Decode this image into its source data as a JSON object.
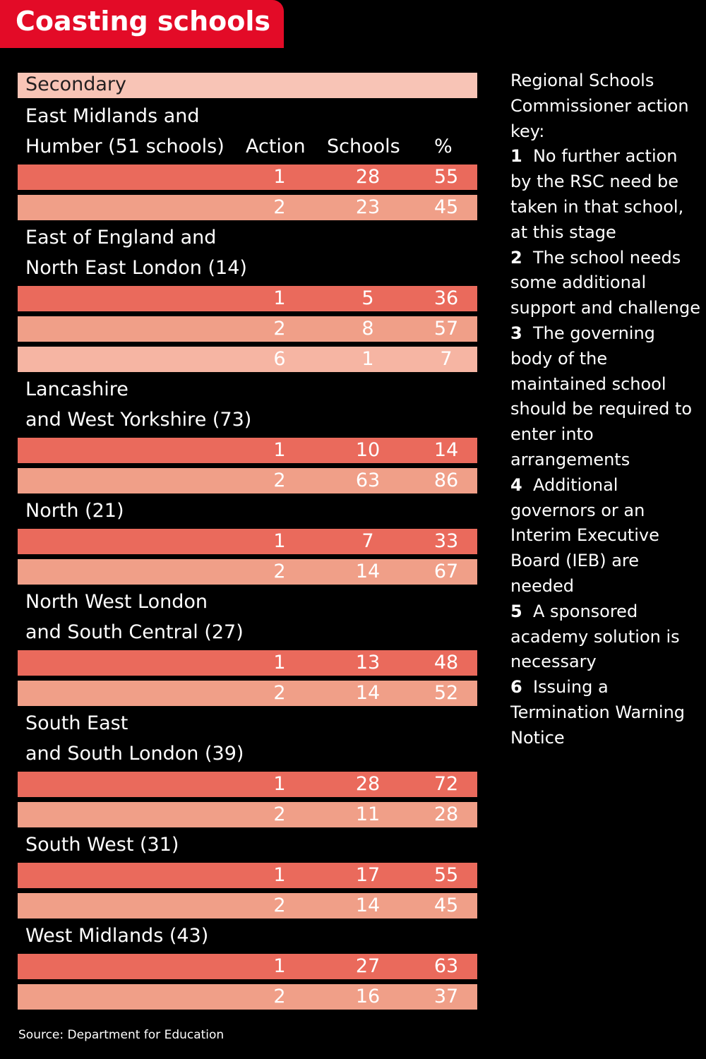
{
  "title": "Coasting schools",
  "section_label": "Secondary",
  "column_headers": {
    "action": "Action",
    "schools": "Schools",
    "percent": "%"
  },
  "chart_data": {
    "type": "table",
    "title": "Coasting schools",
    "section": "Secondary",
    "columns": [
      "Action",
      "Schools",
      "%"
    ],
    "regions": [
      {
        "name_lines": [
          "East Midlands and",
          "Humber (51 schools)"
        ],
        "rows": [
          {
            "action": 1,
            "schools": 28,
            "percent": 55
          },
          {
            "action": 2,
            "schools": 23,
            "percent": 45
          }
        ]
      },
      {
        "name_lines": [
          "East of England and",
          "North East London (14)"
        ],
        "rows": [
          {
            "action": 1,
            "schools": 5,
            "percent": 36
          },
          {
            "action": 2,
            "schools": 8,
            "percent": 57
          },
          {
            "action": 6,
            "schools": 1,
            "percent": 7
          }
        ]
      },
      {
        "name_lines": [
          "Lancashire",
          "and West Yorkshire (73)"
        ],
        "rows": [
          {
            "action": 1,
            "schools": 10,
            "percent": 14
          },
          {
            "action": 2,
            "schools": 63,
            "percent": 86
          }
        ]
      },
      {
        "name_lines": [
          "North (21)"
        ],
        "rows": [
          {
            "action": 1,
            "schools": 7,
            "percent": 33
          },
          {
            "action": 2,
            "schools": 14,
            "percent": 67
          }
        ]
      },
      {
        "name_lines": [
          "North West London",
          "and South Central (27)"
        ],
        "rows": [
          {
            "action": 1,
            "schools": 13,
            "percent": 48
          },
          {
            "action": 2,
            "schools": 14,
            "percent": 52
          }
        ]
      },
      {
        "name_lines": [
          "South East",
          "and South London (39)"
        ],
        "rows": [
          {
            "action": 1,
            "schools": 28,
            "percent": 72
          },
          {
            "action": 2,
            "schools": 11,
            "percent": 28
          }
        ]
      },
      {
        "name_lines": [
          "South West (31)"
        ],
        "rows": [
          {
            "action": 1,
            "schools": 17,
            "percent": 55
          },
          {
            "action": 2,
            "schools": 14,
            "percent": 45
          }
        ]
      },
      {
        "name_lines": [
          "West Midlands (43)"
        ],
        "rows": [
          {
            "action": 1,
            "schools": 27,
            "percent": 63
          },
          {
            "action": 2,
            "schools": 16,
            "percent": 37
          }
        ]
      }
    ]
  },
  "key": {
    "heading": "Regional Schools Commissioner action key:",
    "items": [
      {
        "num": "1",
        "text": "No further action by the RSC need be taken in that school, at this stage"
      },
      {
        "num": "2",
        "text": "The school needs some additional support and challenge"
      },
      {
        "num": "3",
        "text": "The governing body of the maintained school should be required to enter into arrangements"
      },
      {
        "num": "4",
        "text": "Additional governors or an Interim Executive Board (IEB) are needed"
      },
      {
        "num": "5",
        "text": "A sponsored academy solution is necessary"
      },
      {
        "num": "6",
        "text": "Issuing a Termination Warning Notice"
      }
    ]
  },
  "source": "Source: Department for Education",
  "colors": {
    "banner": "#e30b27",
    "subhead": "#f8c4b6",
    "row1": "#ea6a5c",
    "row2": "#f09f88",
    "row3": "#f6b5a3",
    "background": "#000000"
  }
}
